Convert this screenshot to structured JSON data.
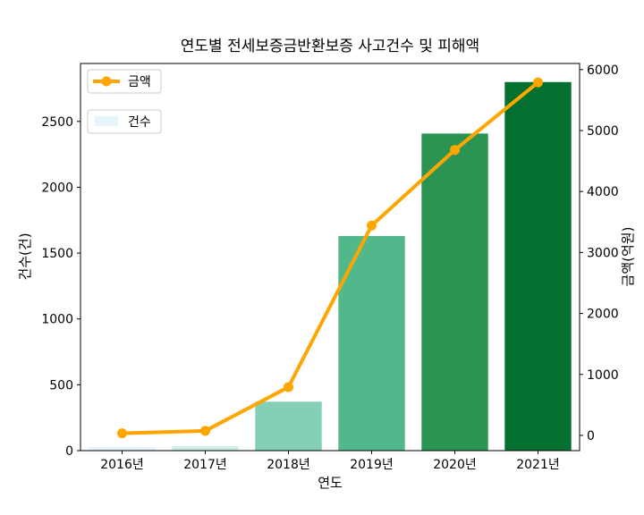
{
  "chart_data": {
    "type": "bar",
    "title": "연도별 전세보증금반환보증 사고건수 및 피해액",
    "xlabel": "연도",
    "ylabel": "건수(건)",
    "y2label": "금액(억원)",
    "categories": [
      "2016년",
      "2017년",
      "2018년",
      "2019년",
      "2020년",
      "2021년"
    ],
    "series": [
      {
        "name": "건수",
        "type": "bar",
        "axis": "left",
        "values": [
          27,
          33,
          372,
          1630,
          2408,
          2799
        ],
        "colors": [
          "#e5f5f9",
          "#ccece6",
          "#84cfb5",
          "#52b78a",
          "#2c9452",
          "#04702f"
        ]
      },
      {
        "name": "금액",
        "type": "line",
        "axis": "right",
        "values": [
          34,
          75,
          792,
          3442,
          4682,
          5790
        ],
        "color": "#ffa500"
      }
    ],
    "ylim": [
      0,
      2940
    ],
    "yticks": [
      0,
      500,
      1000,
      1500,
      2000,
      2500
    ],
    "y2lim": [
      -250,
      6100
    ],
    "y2ticks": [
      0,
      1000,
      2000,
      3000,
      4000,
      5000,
      6000
    ],
    "grid": false,
    "legend": "upper-left"
  }
}
